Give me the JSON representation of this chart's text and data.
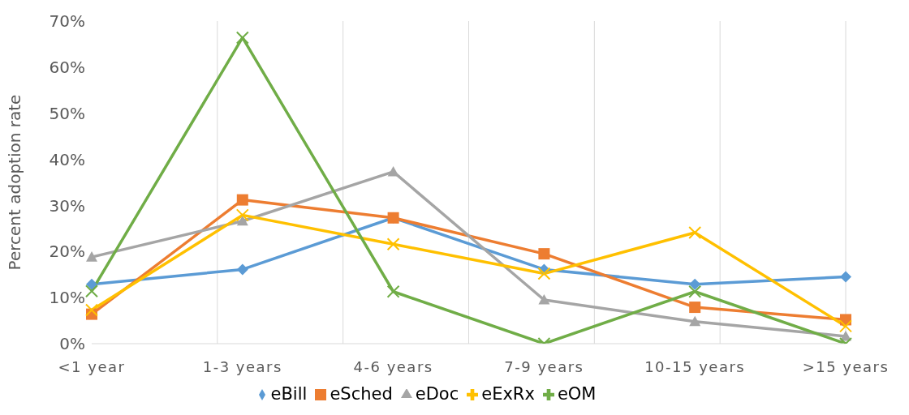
{
  "chart_data": {
    "type": "line",
    "ylabel": "Percent adoption rate",
    "categories": [
      "<1 year",
      "1-3 years",
      "4-6 years",
      "7-9 years",
      "10-15 years",
      ">15 years"
    ],
    "series": [
      {
        "name": "eBill",
        "color": "#5b9bd5",
        "marker": "diamond",
        "values": [
          12.9,
          16.1,
          27.3,
          16.1,
          12.9,
          14.5
        ]
      },
      {
        "name": "eSched",
        "color": "#ed7d31",
        "marker": "square",
        "values": [
          6.4,
          31.2,
          27.3,
          19.5,
          7.9,
          5.2
        ]
      },
      {
        "name": "eDoc",
        "color": "#a5a5a5",
        "marker": "triangle",
        "values": [
          18.8,
          26.6,
          37.3,
          9.5,
          4.8,
          1.6
        ]
      },
      {
        "name": "eExRx",
        "color": "#ffc000",
        "marker": "cross",
        "values": [
          7.3,
          27.9,
          21.6,
          15.2,
          24.1,
          3.8
        ]
      },
      {
        "name": "eOM",
        "color": "#70ad47",
        "marker": "cross",
        "values": [
          11.4,
          66.4,
          11.3,
          0,
          11.3,
          0
        ]
      }
    ],
    "ylim": [
      0,
      70
    ],
    "yticks": [
      {
        "value": 0,
        "label": "0%"
      },
      {
        "value": 10,
        "label": "10%"
      },
      {
        "value": 20,
        "label": "20%"
      },
      {
        "value": 30,
        "label": "30%"
      },
      {
        "value": 40,
        "label": "40%"
      },
      {
        "value": 50,
        "label": "50%"
      },
      {
        "value": 60,
        "label": "60%"
      },
      {
        "value": 70,
        "label": "70%"
      }
    ],
    "grid": "x",
    "legend": "bottom"
  }
}
